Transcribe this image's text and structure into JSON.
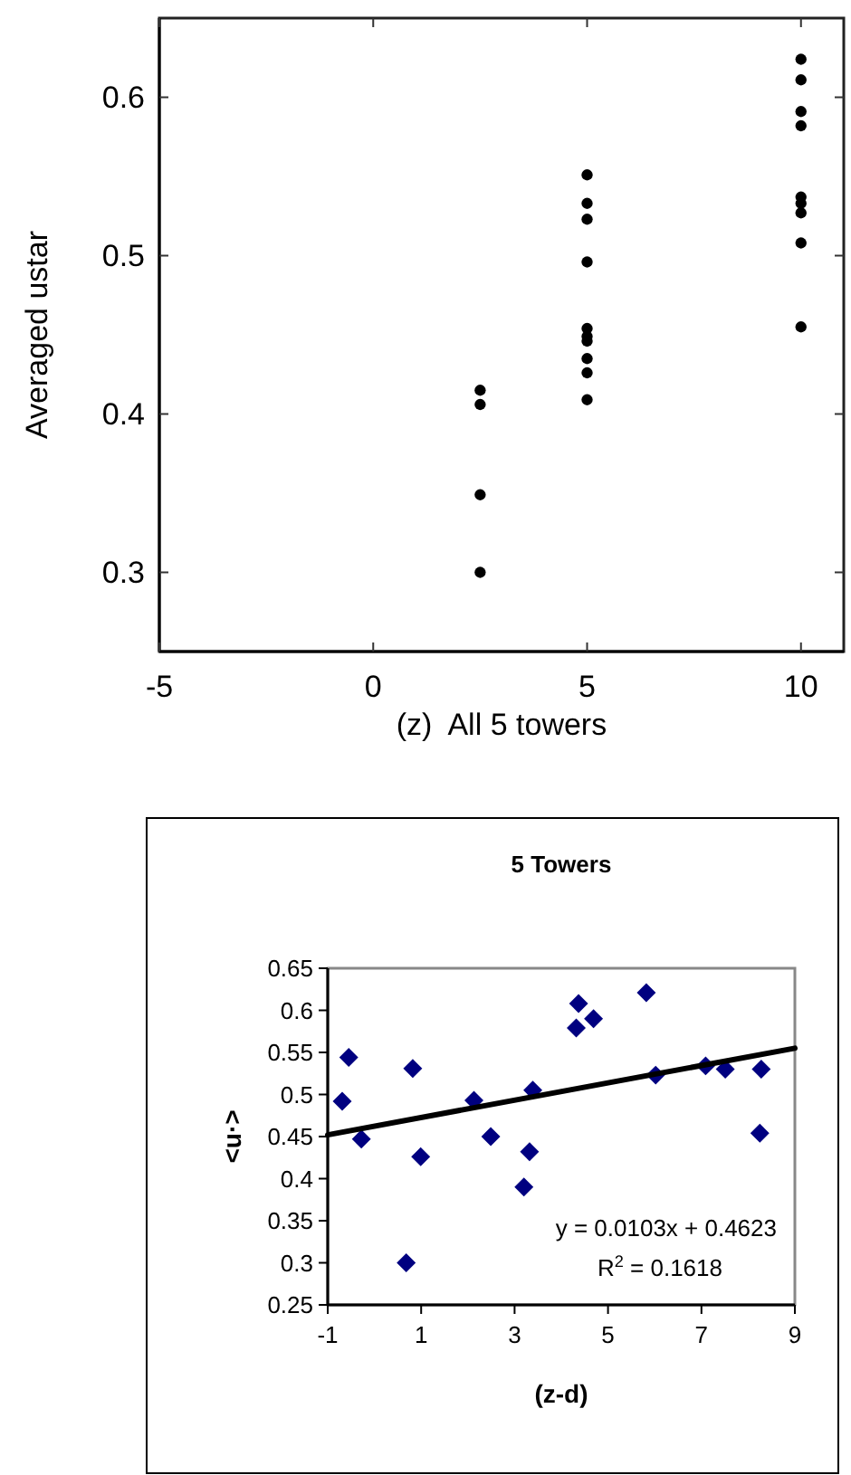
{
  "chart_data": [
    {
      "type": "scatter",
      "xlabel": "(z)  All 5 towers",
      "ylabel": "Averaged ustar",
      "marker": "circle",
      "xlim": [
        -5,
        11
      ],
      "ylim": [
        0.25,
        0.65
      ],
      "xticks": [
        -5,
        0,
        5,
        10
      ],
      "yticks": [
        0.3,
        0.4,
        0.5,
        0.6
      ],
      "series": [
        {
          "color": "#000000",
          "x": [
            2.5,
            2.5,
            2.5,
            2.5,
            5,
            5,
            5,
            5,
            5,
            5,
            5,
            5,
            5,
            5,
            10,
            10,
            10,
            10,
            10,
            10,
            10,
            10,
            10
          ],
          "values": [
            0.415,
            0.406,
            0.349,
            0.3,
            0.551,
            0.533,
            0.523,
            0.496,
            0.454,
            0.449,
            0.446,
            0.435,
            0.426,
            0.409,
            0.624,
            0.611,
            0.591,
            0.582,
            0.537,
            0.533,
            0.527,
            0.508,
            0.455
          ]
        }
      ]
    },
    {
      "type": "scatter",
      "title": "5 Towers",
      "xlabel": "(z-d)",
      "ylabel": "<u·>",
      "xlim": [
        -1,
        9
      ],
      "ylim": [
        0.25,
        0.65
      ],
      "xticks": [
        -1,
        1,
        3,
        5,
        7,
        9
      ],
      "yticks": [
        0.25,
        0.3,
        0.35,
        0.4,
        0.45,
        0.5,
        0.55,
        0.6,
        0.65
      ],
      "series": [
        {
          "color": "#000080",
          "marker": "diamond",
          "x": [
            -0.69,
            -0.55,
            -0.28,
            0.68,
            0.82,
            0.99,
            2.13,
            2.49,
            3.2,
            3.32,
            3.39,
            4.32,
            4.37,
            4.69,
            5.82,
            6.02,
            7.09,
            7.51,
            8.25,
            8.28
          ],
          "values": [
            0.492,
            0.544,
            0.447,
            0.3,
            0.531,
            0.426,
            0.493,
            0.45,
            0.39,
            0.432,
            0.505,
            0.579,
            0.608,
            0.59,
            0.621,
            0.523,
            0.534,
            0.53,
            0.454,
            0.53
          ]
        },
        {
          "type": "line",
          "marker": "none",
          "color": "#000000",
          "x": [
            -1,
            9
          ],
          "values": [
            0.452,
            0.555
          ]
        }
      ],
      "annotations": [
        "y = 0.0103x + 0.4623",
        "R$^{2}$ = 0.1618"
      ]
    }
  ]
}
